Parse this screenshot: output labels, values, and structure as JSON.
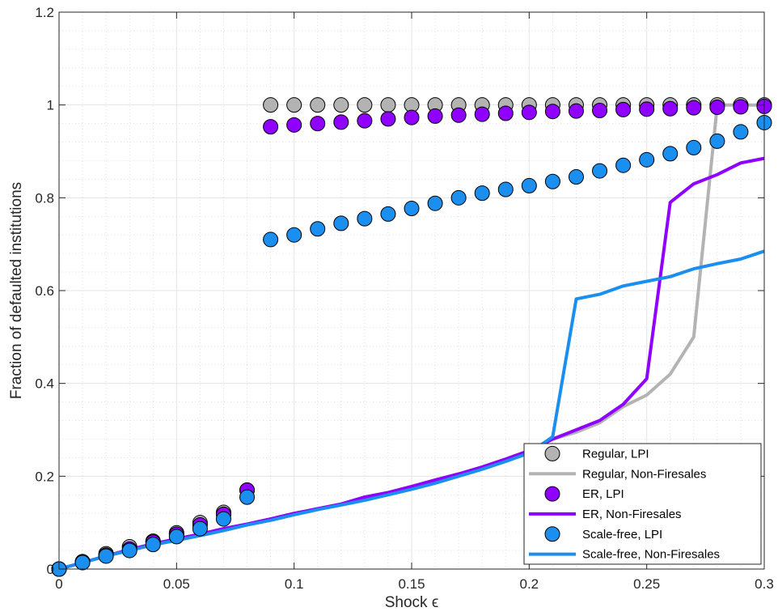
{
  "chart_data": {
    "type": "scatter",
    "title": "",
    "xlabel": "Shock ϵ",
    "ylabel": "Fraction of defaulted institutions",
    "xlim": [
      0,
      0.3
    ],
    "ylim": [
      0,
      1.2
    ],
    "xticks": [
      0,
      0.05,
      0.1,
      0.15,
      0.2,
      0.25,
      0.3
    ],
    "xtick_labels": [
      "0",
      "0.05",
      "0.1",
      "0.15",
      "0.2",
      "0.25",
      "0.3"
    ],
    "yticks": [
      0,
      0.2,
      0.4,
      0.6,
      0.8,
      1,
      1.2
    ],
    "ytick_labels": [
      "0",
      "0.2",
      "0.4",
      "0.6",
      "0.8",
      "1",
      "1.2"
    ],
    "grid": true,
    "minor_grid": true,
    "legend_position": "bottom-right",
    "series": [
      {
        "name": "Regular, LPI",
        "kind": "marker",
        "color": "#b3b3b3",
        "points": [
          [
            0,
            0
          ],
          [
            0.01,
            0.016
          ],
          [
            0.02,
            0.033
          ],
          [
            0.03,
            0.048
          ],
          [
            0.04,
            0.06
          ],
          [
            0.05,
            0.078
          ],
          [
            0.06,
            0.1
          ],
          [
            0.07,
            0.122
          ],
          [
            0.08,
            0.17
          ],
          [
            0.09,
            1
          ],
          [
            0.1,
            1
          ],
          [
            0.11,
            1
          ],
          [
            0.12,
            1
          ],
          [
            0.13,
            1
          ],
          [
            0.14,
            1
          ],
          [
            0.15,
            1
          ],
          [
            0.16,
            1
          ],
          [
            0.17,
            1
          ],
          [
            0.18,
            1
          ],
          [
            0.19,
            1
          ],
          [
            0.2,
            1
          ],
          [
            0.21,
            1
          ],
          [
            0.22,
            1
          ],
          [
            0.23,
            1
          ],
          [
            0.24,
            1
          ],
          [
            0.25,
            1
          ],
          [
            0.26,
            1
          ],
          [
            0.27,
            1
          ],
          [
            0.28,
            1
          ],
          [
            0.29,
            1
          ],
          [
            0.3,
            1
          ]
        ]
      },
      {
        "name": "Regular, Non-Firesales",
        "kind": "line",
        "color": "#b3b3b3",
        "points": [
          [
            0,
            0
          ],
          [
            0.01,
            0.014
          ],
          [
            0.02,
            0.028
          ],
          [
            0.03,
            0.042
          ],
          [
            0.04,
            0.054
          ],
          [
            0.05,
            0.065
          ],
          [
            0.06,
            0.075
          ],
          [
            0.07,
            0.087
          ],
          [
            0.08,
            0.097
          ],
          [
            0.09,
            0.108
          ],
          [
            0.1,
            0.12
          ],
          [
            0.11,
            0.13
          ],
          [
            0.12,
            0.14
          ],
          [
            0.13,
            0.155
          ],
          [
            0.14,
            0.165
          ],
          [
            0.15,
            0.175
          ],
          [
            0.16,
            0.19
          ],
          [
            0.17,
            0.205
          ],
          [
            0.18,
            0.22
          ],
          [
            0.19,
            0.237
          ],
          [
            0.2,
            0.255
          ],
          [
            0.21,
            0.28
          ],
          [
            0.22,
            0.295
          ],
          [
            0.23,
            0.315
          ],
          [
            0.24,
            0.35
          ],
          [
            0.25,
            0.375
          ],
          [
            0.26,
            0.42
          ],
          [
            0.27,
            0.5
          ],
          [
            0.28,
            1
          ],
          [
            0.29,
            1
          ],
          [
            0.3,
            1
          ]
        ]
      },
      {
        "name": "ER, LPI",
        "kind": "marker",
        "color": "#8f00ff",
        "points": [
          [
            0,
            0
          ],
          [
            0.01,
            0.015
          ],
          [
            0.02,
            0.03
          ],
          [
            0.03,
            0.043
          ],
          [
            0.04,
            0.058
          ],
          [
            0.05,
            0.075
          ],
          [
            0.06,
            0.095
          ],
          [
            0.07,
            0.118
          ],
          [
            0.08,
            0.17
          ],
          [
            0.09,
            0.953
          ],
          [
            0.1,
            0.957
          ],
          [
            0.11,
            0.96
          ],
          [
            0.12,
            0.963
          ],
          [
            0.13,
            0.966
          ],
          [
            0.14,
            0.97
          ],
          [
            0.15,
            0.973
          ],
          [
            0.16,
            0.976
          ],
          [
            0.17,
            0.978
          ],
          [
            0.18,
            0.98
          ],
          [
            0.19,
            0.982
          ],
          [
            0.2,
            0.984
          ],
          [
            0.21,
            0.986
          ],
          [
            0.22,
            0.987
          ],
          [
            0.23,
            0.988
          ],
          [
            0.24,
            0.99
          ],
          [
            0.25,
            0.991
          ],
          [
            0.26,
            0.992
          ],
          [
            0.27,
            0.994
          ],
          [
            0.28,
            0.995
          ],
          [
            0.29,
            0.996
          ],
          [
            0.3,
            0.997
          ]
        ]
      },
      {
        "name": "ER, Non-Firesales",
        "kind": "line",
        "color": "#8f00ff",
        "points": [
          [
            0,
            0
          ],
          [
            0.01,
            0.014
          ],
          [
            0.02,
            0.028
          ],
          [
            0.03,
            0.042
          ],
          [
            0.04,
            0.054
          ],
          [
            0.05,
            0.065
          ],
          [
            0.06,
            0.075
          ],
          [
            0.07,
            0.087
          ],
          [
            0.08,
            0.097
          ],
          [
            0.09,
            0.108
          ],
          [
            0.1,
            0.12
          ],
          [
            0.11,
            0.13
          ],
          [
            0.12,
            0.14
          ],
          [
            0.13,
            0.155
          ],
          [
            0.14,
            0.165
          ],
          [
            0.15,
            0.178
          ],
          [
            0.16,
            0.192
          ],
          [
            0.17,
            0.205
          ],
          [
            0.18,
            0.22
          ],
          [
            0.19,
            0.237
          ],
          [
            0.2,
            0.255
          ],
          [
            0.21,
            0.28
          ],
          [
            0.22,
            0.3
          ],
          [
            0.23,
            0.32
          ],
          [
            0.24,
            0.355
          ],
          [
            0.25,
            0.41
          ],
          [
            0.26,
            0.79
          ],
          [
            0.27,
            0.83
          ],
          [
            0.28,
            0.85
          ],
          [
            0.29,
            0.875
          ],
          [
            0.3,
            0.885
          ]
        ]
      },
      {
        "name": "Scale-free, LPI",
        "kind": "marker",
        "color": "#1a8fef",
        "points": [
          [
            0,
            0
          ],
          [
            0.01,
            0.014
          ],
          [
            0.02,
            0.028
          ],
          [
            0.03,
            0.04
          ],
          [
            0.04,
            0.053
          ],
          [
            0.05,
            0.07
          ],
          [
            0.06,
            0.087
          ],
          [
            0.07,
            0.108
          ],
          [
            0.08,
            0.155
          ],
          [
            0.09,
            0.71
          ],
          [
            0.1,
            0.72
          ],
          [
            0.11,
            0.733
          ],
          [
            0.12,
            0.745
          ],
          [
            0.13,
            0.755
          ],
          [
            0.14,
            0.765
          ],
          [
            0.15,
            0.777
          ],
          [
            0.16,
            0.788
          ],
          [
            0.17,
            0.8
          ],
          [
            0.18,
            0.81
          ],
          [
            0.19,
            0.818
          ],
          [
            0.2,
            0.826
          ],
          [
            0.21,
            0.835
          ],
          [
            0.22,
            0.845
          ],
          [
            0.23,
            0.858
          ],
          [
            0.24,
            0.87
          ],
          [
            0.25,
            0.882
          ],
          [
            0.26,
            0.895
          ],
          [
            0.27,
            0.908
          ],
          [
            0.28,
            0.922
          ],
          [
            0.29,
            0.942
          ],
          [
            0.3,
            0.962
          ]
        ]
      },
      {
        "name": "Scale-free, Non-Firesales",
        "kind": "line",
        "color": "#1a8fef",
        "points": [
          [
            0,
            0
          ],
          [
            0.01,
            0.014
          ],
          [
            0.02,
            0.028
          ],
          [
            0.03,
            0.04
          ],
          [
            0.04,
            0.052
          ],
          [
            0.05,
            0.062
          ],
          [
            0.06,
            0.072
          ],
          [
            0.07,
            0.083
          ],
          [
            0.08,
            0.095
          ],
          [
            0.09,
            0.105
          ],
          [
            0.1,
            0.117
          ],
          [
            0.11,
            0.128
          ],
          [
            0.12,
            0.138
          ],
          [
            0.13,
            0.148
          ],
          [
            0.14,
            0.16
          ],
          [
            0.15,
            0.172
          ],
          [
            0.16,
            0.185
          ],
          [
            0.17,
            0.2
          ],
          [
            0.18,
            0.215
          ],
          [
            0.19,
            0.232
          ],
          [
            0.2,
            0.25
          ],
          [
            0.21,
            0.285
          ],
          [
            0.22,
            0.582
          ],
          [
            0.23,
            0.592
          ],
          [
            0.24,
            0.61
          ],
          [
            0.25,
            0.62
          ],
          [
            0.26,
            0.63
          ],
          [
            0.27,
            0.647
          ],
          [
            0.28,
            0.658
          ],
          [
            0.29,
            0.668
          ],
          [
            0.3,
            0.685
          ]
        ]
      }
    ]
  }
}
